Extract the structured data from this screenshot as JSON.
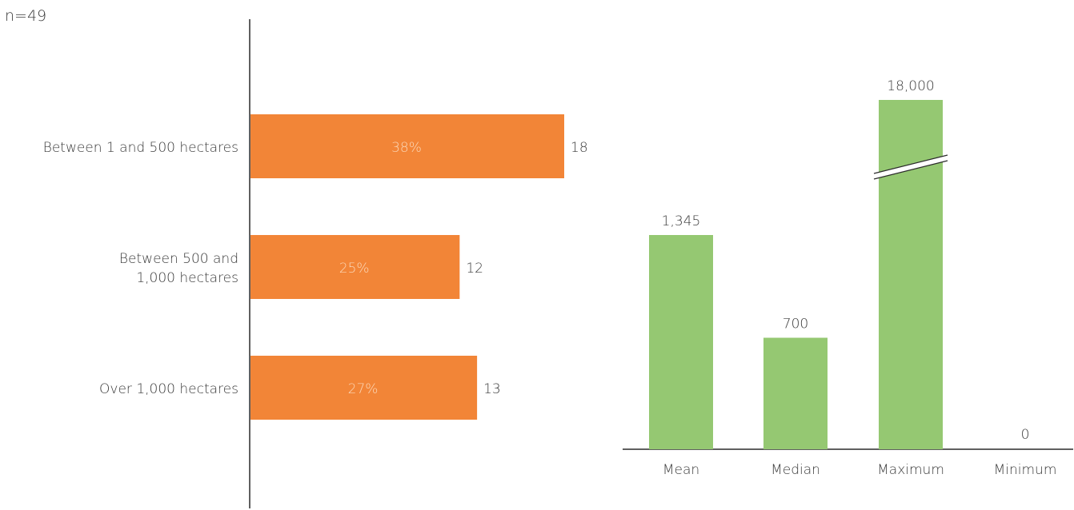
{
  "sample_note": "n=49",
  "colors": {
    "bar_primary": "#f28537",
    "bar_secondary": "#95c872",
    "axis": "#2b2b2b",
    "text": "#3a3a3a",
    "inner_label": "#fbd7b7"
  },
  "chart_data": [
    {
      "type": "bar",
      "orientation": "horizontal",
      "title": "",
      "xlabel": "",
      "ylabel": "",
      "categories": [
        "Between 1 and 500 hectares",
        "Between 500 and 1,000 hectares",
        "Over 1,000 hectares"
      ],
      "category_lines": [
        [
          "Between 1 and 500 hectares"
        ],
        [
          "Between 500 and",
          "1,000 hectares"
        ],
        [
          "Over 1,000 hectares"
        ]
      ],
      "values": [
        18,
        12,
        13
      ],
      "percent_labels": [
        "38%",
        "25%",
        "27%"
      ],
      "value_labels": [
        "18",
        "12",
        "13"
      ],
      "xlim": [
        0,
        18
      ],
      "grid": false,
      "legend": "none"
    },
    {
      "type": "bar",
      "orientation": "vertical",
      "title": "",
      "xlabel": "",
      "ylabel": "",
      "categories": [
        "Mean",
        "Median",
        "Maximum",
        "Minimum"
      ],
      "values": [
        1345,
        700,
        18000,
        0
      ],
      "value_labels": [
        "1,345",
        "700",
        "18,000",
        "0"
      ],
      "axis_break": "Maximum",
      "grid": false,
      "legend": "none"
    }
  ]
}
